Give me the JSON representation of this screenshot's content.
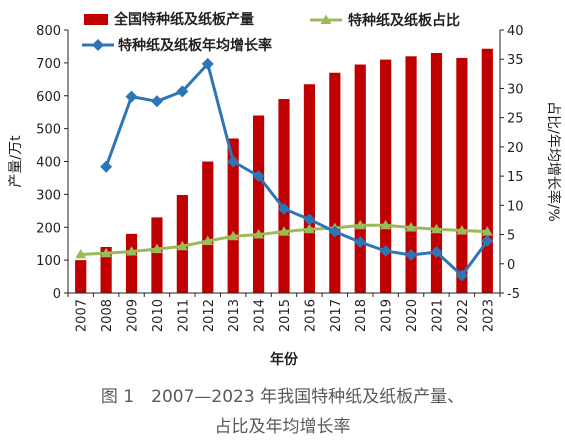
{
  "chart_data": {
    "type": "bar+line",
    "categories": [
      "2007",
      "2008",
      "2009",
      "2010",
      "2011",
      "2012",
      "2013",
      "2014",
      "2015",
      "2016",
      "2017",
      "2018",
      "2019",
      "2020",
      "2021",
      "2022",
      "2023"
    ],
    "series": [
      {
        "name": "全国特种纸及纸板产量",
        "kind": "bar",
        "axis": "left",
        "color": "#c00000",
        "values": [
          100,
          140,
          180,
          230,
          298,
          400,
          470,
          540,
          590,
          635,
          670,
          695,
          710,
          720,
          730,
          715,
          743
        ]
      },
      {
        "name": "特种纸及纸板占比",
        "kind": "line",
        "axis": "right",
        "color": "#9bbb59",
        "marker": "triangle",
        "values": [
          1.6,
          1.8,
          2.1,
          2.5,
          3.0,
          3.9,
          4.7,
          5.0,
          5.5,
          5.9,
          6.1,
          6.6,
          6.6,
          6.2,
          5.9,
          5.7,
          5.5
        ]
      },
      {
        "name": "特种纸及纸板年均增长率",
        "kind": "line",
        "axis": "right",
        "color": "#2e75b6",
        "marker": "diamond",
        "values": [
          null,
          16.6,
          28.6,
          27.8,
          29.5,
          34.2,
          17.5,
          15.0,
          9.4,
          7.6,
          5.5,
          3.7,
          2.2,
          1.5,
          2.0,
          -2.0,
          3.9
        ]
      }
    ],
    "xlabel": "年份",
    "ylabel_left": "产量/万t",
    "ylabel_right": "占比/年均增长率/%",
    "ylim_left": [
      0,
      800
    ],
    "yticks_left": [
      0,
      100,
      200,
      300,
      400,
      500,
      600,
      700,
      800
    ],
    "ylim_right": [
      -5,
      40
    ],
    "yticks_right": [
      -5,
      0,
      5,
      10,
      15,
      20,
      25,
      30,
      35,
      40
    ],
    "grid": false,
    "legend": "top"
  },
  "caption": {
    "line1": "图 1　2007—2023 年我国特种纸及纸板产量、",
    "line2": "占比及年均增长率"
  }
}
